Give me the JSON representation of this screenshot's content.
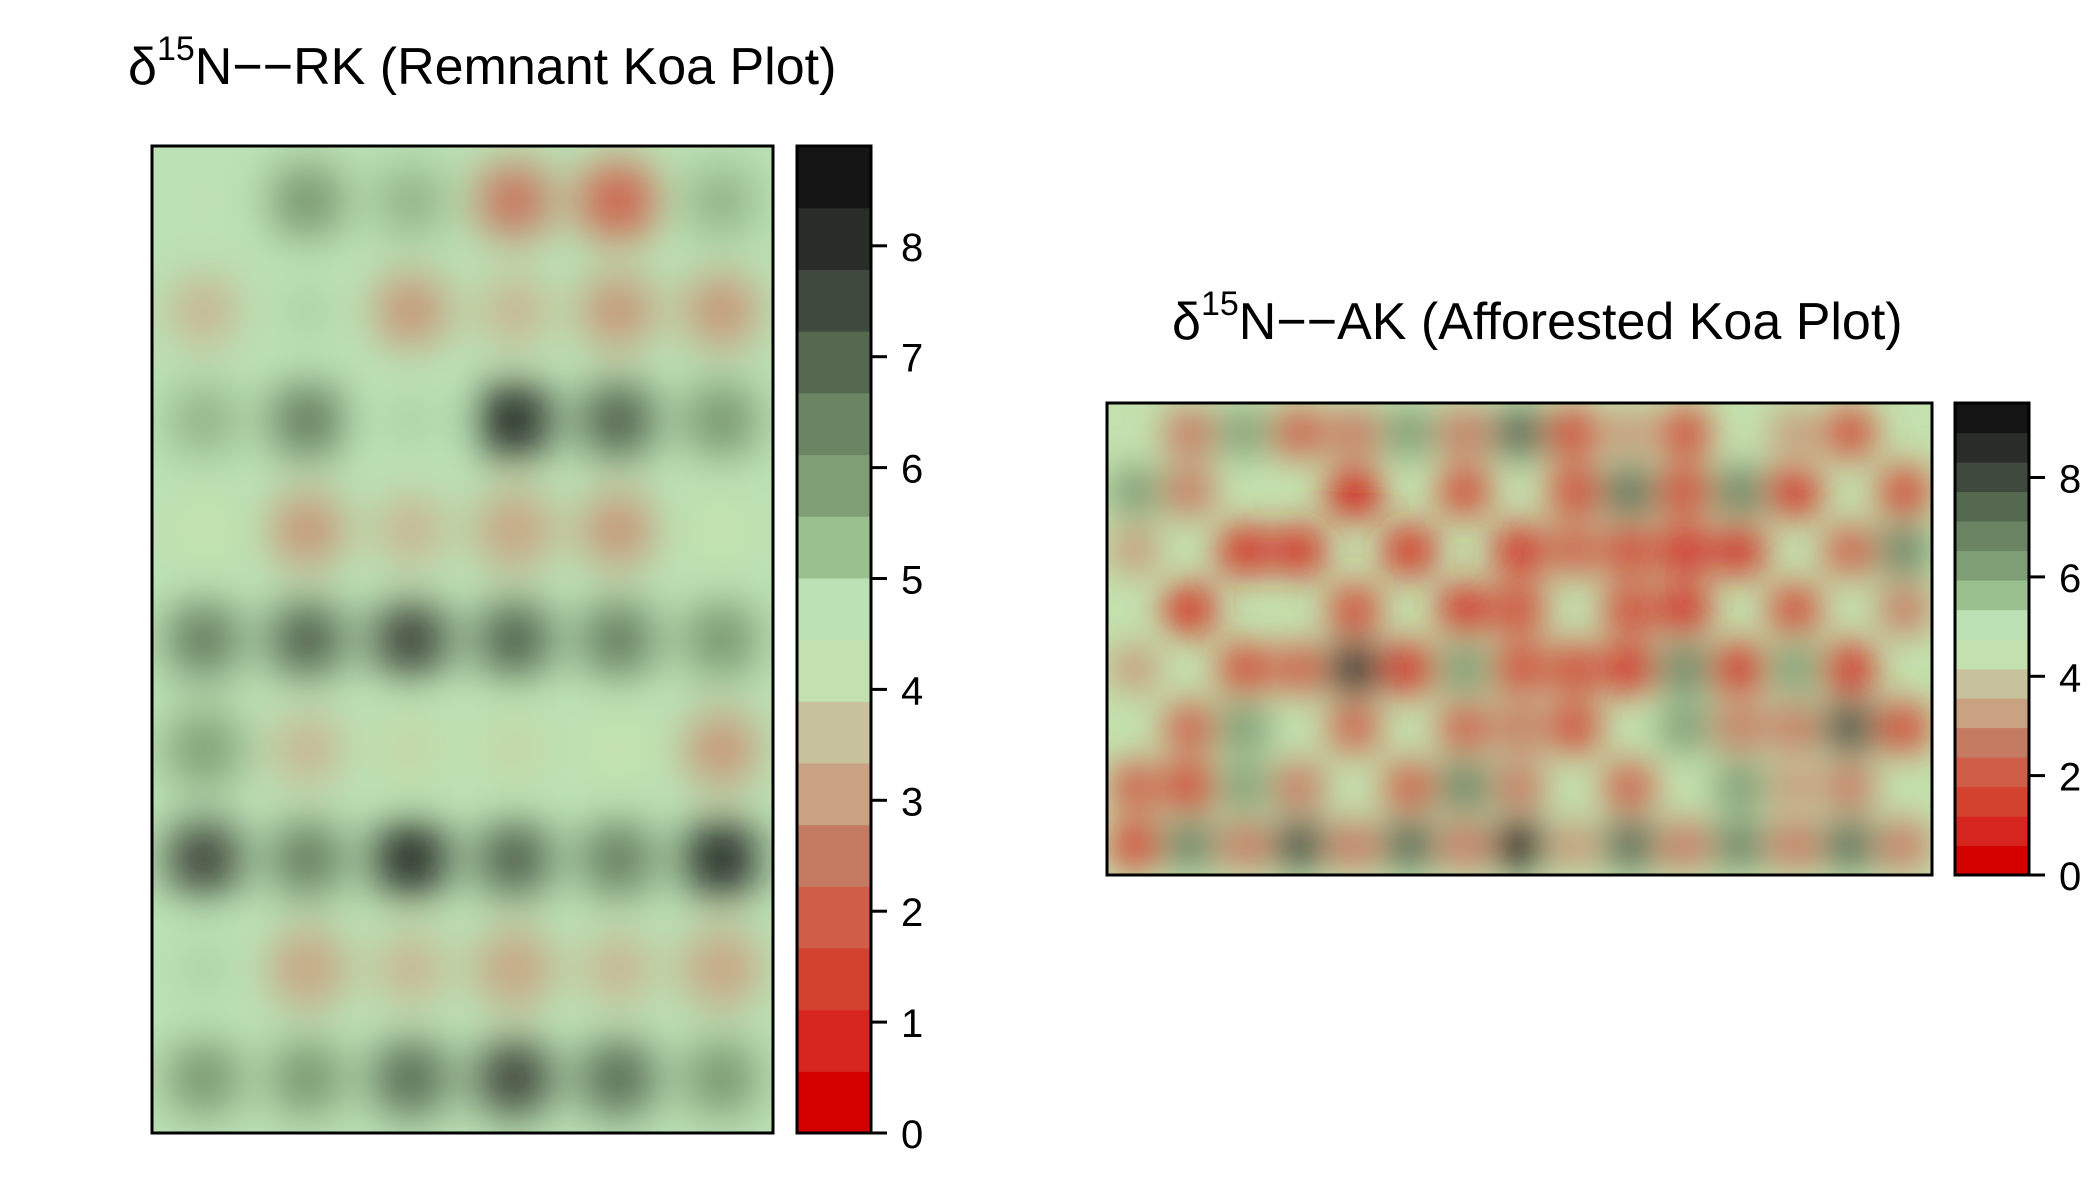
{
  "colors": {
    "ramp": [
      "#d40000",
      "#d5251e",
      "#d3412f",
      "#cf5d47",
      "#c57a62",
      "#c8a281",
      "#c7c29b",
      "#c3e1ae",
      "#bbe1b4",
      "#9bc08f",
      "#7f9e75",
      "#6b8564",
      "#556951",
      "#40493d",
      "#292d27",
      "#151515"
    ],
    "frame": "#000000",
    "background": "#ffffff"
  },
  "chart_data": [
    {
      "type": "heatmap",
      "title_sup": "15",
      "title_symbol": "δ",
      "title_rest": "N−−RK (Remnant Koa Plot)",
      "color_scale": {
        "min": 0,
        "max": 8.9,
        "step": 0.5
      },
      "colorbar_ticks": [
        "0",
        "1",
        "2",
        "3",
        "4",
        "5",
        "6",
        "7",
        "8"
      ],
      "colorbar_tick_values": [
        0,
        1,
        2,
        3,
        4,
        5,
        6,
        7,
        8
      ],
      "grid": {
        "cols": 6,
        "rows": 9,
        "x_range": [
          0,
          5
        ],
        "y_range": [
          0,
          8
        ]
      },
      "background_level": 4.7,
      "points": [
        {
          "x": 0,
          "y": 8,
          "v": 4.7
        },
        {
          "x": 1,
          "y": 8,
          "v": 5.9
        },
        {
          "x": 2,
          "y": 8,
          "v": 5.5
        },
        {
          "x": 3,
          "y": 8,
          "v": 2.4
        },
        {
          "x": 4,
          "y": 8,
          "v": 2.2
        },
        {
          "x": 5,
          "y": 8,
          "v": 5.2
        },
        {
          "x": 0,
          "y": 7,
          "v": 3.8
        },
        {
          "x": 1,
          "y": 7,
          "v": 5.0
        },
        {
          "x": 2,
          "y": 7,
          "v": 3.2
        },
        {
          "x": 3,
          "y": 7,
          "v": 3.6
        },
        {
          "x": 4,
          "y": 7,
          "v": 3.0
        },
        {
          "x": 5,
          "y": 7,
          "v": 2.8
        },
        {
          "x": 0,
          "y": 6,
          "v": 5.5
        },
        {
          "x": 1,
          "y": 6,
          "v": 6.3
        },
        {
          "x": 2,
          "y": 6,
          "v": 5.0
        },
        {
          "x": 3,
          "y": 6,
          "v": 8.0
        },
        {
          "x": 4,
          "y": 6,
          "v": 6.8
        },
        {
          "x": 5,
          "y": 6,
          "v": 5.8
        },
        {
          "x": 0,
          "y": 5,
          "v": 4.4
        },
        {
          "x": 1,
          "y": 5,
          "v": 3.0
        },
        {
          "x": 2,
          "y": 5,
          "v": 3.4
        },
        {
          "x": 3,
          "y": 5,
          "v": 3.3
        },
        {
          "x": 4,
          "y": 5,
          "v": 2.8
        },
        {
          "x": 5,
          "y": 5,
          "v": 4.4
        },
        {
          "x": 0,
          "y": 4,
          "v": 6.4
        },
        {
          "x": 1,
          "y": 4,
          "v": 7.2
        },
        {
          "x": 2,
          "y": 4,
          "v": 7.3
        },
        {
          "x": 3,
          "y": 4,
          "v": 6.9
        },
        {
          "x": 4,
          "y": 4,
          "v": 6.6
        },
        {
          "x": 5,
          "y": 4,
          "v": 5.8
        },
        {
          "x": 0,
          "y": 3,
          "v": 5.6
        },
        {
          "x": 1,
          "y": 3,
          "v": 3.6
        },
        {
          "x": 2,
          "y": 3,
          "v": 4.3
        },
        {
          "x": 3,
          "y": 3,
          "v": 4.2
        },
        {
          "x": 4,
          "y": 3,
          "v": 4.4
        },
        {
          "x": 5,
          "y": 3,
          "v": 3.0
        },
        {
          "x": 0,
          "y": 2,
          "v": 7.4
        },
        {
          "x": 1,
          "y": 2,
          "v": 6.5
        },
        {
          "x": 2,
          "y": 2,
          "v": 8.3
        },
        {
          "x": 3,
          "y": 2,
          "v": 6.8
        },
        {
          "x": 4,
          "y": 2,
          "v": 6.3
        },
        {
          "x": 5,
          "y": 2,
          "v": 8.0
        },
        {
          "x": 0,
          "y": 1,
          "v": 5.0
        },
        {
          "x": 1,
          "y": 1,
          "v": 3.3
        },
        {
          "x": 2,
          "y": 1,
          "v": 3.6
        },
        {
          "x": 3,
          "y": 1,
          "v": 3.3
        },
        {
          "x": 4,
          "y": 1,
          "v": 3.8
        },
        {
          "x": 5,
          "y": 1,
          "v": 3.3
        },
        {
          "x": 0,
          "y": 0,
          "v": 6.1
        },
        {
          "x": 1,
          "y": 0,
          "v": 5.9
        },
        {
          "x": 2,
          "y": 0,
          "v": 6.7
        },
        {
          "x": 3,
          "y": 0,
          "v": 7.5
        },
        {
          "x": 4,
          "y": 0,
          "v": 6.7
        },
        {
          "x": 5,
          "y": 0,
          "v": 6.0
        }
      ]
    },
    {
      "type": "heatmap",
      "title_sup": "15",
      "title_symbol": "δ",
      "title_rest": "N−−AK (Afforested Koa Plot)",
      "color_scale": {
        "min": 0,
        "max": 9.5,
        "step": 0.625
      },
      "colorbar_ticks": [
        "0",
        "2",
        "4",
        "6",
        "8"
      ],
      "colorbar_tick_values": [
        0,
        2,
        4,
        6,
        8
      ],
      "grid": {
        "cols": 15,
        "rows": 8,
        "x_range": [
          0,
          14
        ],
        "y_range": [
          0,
          7
        ]
      },
      "background_level": 4.6,
      "points": [
        {
          "x": 1,
          "y": 7,
          "v": 2.5
        },
        {
          "x": 3,
          "y": 7,
          "v": 2.0
        },
        {
          "x": 4,
          "y": 7,
          "v": 2.5
        },
        {
          "x": 6,
          "y": 7,
          "v": 2.5
        },
        {
          "x": 8,
          "y": 7,
          "v": 1.5
        },
        {
          "x": 9,
          "y": 7,
          "v": 3.0
        },
        {
          "x": 10,
          "y": 7,
          "v": 1.5
        },
        {
          "x": 12,
          "y": 7,
          "v": 3.0
        },
        {
          "x": 13,
          "y": 7,
          "v": 1.2
        },
        {
          "x": 1,
          "y": 6,
          "v": 2.8
        },
        {
          "x": 4,
          "y": 6,
          "v": 0.5
        },
        {
          "x": 6,
          "y": 6,
          "v": 1.5
        },
        {
          "x": 8,
          "y": 6,
          "v": 1.2
        },
        {
          "x": 10,
          "y": 6,
          "v": 1.4
        },
        {
          "x": 12,
          "y": 6,
          "v": 1.0
        },
        {
          "x": 14,
          "y": 6,
          "v": 1.6
        },
        {
          "x": 0,
          "y": 5,
          "v": 3.0
        },
        {
          "x": 2,
          "y": 5,
          "v": 0.6
        },
        {
          "x": 3,
          "y": 5,
          "v": 0.6
        },
        {
          "x": 5,
          "y": 5,
          "v": 1.0
        },
        {
          "x": 7,
          "y": 5,
          "v": 1.0
        },
        {
          "x": 8,
          "y": 5,
          "v": 2.2
        },
        {
          "x": 9,
          "y": 5,
          "v": 1.5
        },
        {
          "x": 10,
          "y": 5,
          "v": 0.8
        },
        {
          "x": 11,
          "y": 5,
          "v": 1.0
        },
        {
          "x": 13,
          "y": 5,
          "v": 1.8
        },
        {
          "x": 1,
          "y": 4,
          "v": 0.8
        },
        {
          "x": 4,
          "y": 4,
          "v": 1.5
        },
        {
          "x": 6,
          "y": 4,
          "v": 0.6
        },
        {
          "x": 7,
          "y": 4,
          "v": 1.2
        },
        {
          "x": 9,
          "y": 4,
          "v": 1.4
        },
        {
          "x": 10,
          "y": 4,
          "v": 1.0
        },
        {
          "x": 12,
          "y": 4,
          "v": 1.4
        },
        {
          "x": 14,
          "y": 4,
          "v": 2.5
        },
        {
          "x": 0,
          "y": 3,
          "v": 3.0
        },
        {
          "x": 2,
          "y": 3,
          "v": 1.2
        },
        {
          "x": 3,
          "y": 3,
          "v": 1.8
        },
        {
          "x": 5,
          "y": 3,
          "v": 0.8
        },
        {
          "x": 7,
          "y": 3,
          "v": 1.6
        },
        {
          "x": 8,
          "y": 3,
          "v": 1.2
        },
        {
          "x": 9,
          "y": 3,
          "v": 1.0
        },
        {
          "x": 11,
          "y": 3,
          "v": 1.0
        },
        {
          "x": 13,
          "y": 3,
          "v": 0.6
        },
        {
          "x": 1,
          "y": 2,
          "v": 2.2
        },
        {
          "x": 4,
          "y": 2,
          "v": 2.0
        },
        {
          "x": 6,
          "y": 2,
          "v": 2.2
        },
        {
          "x": 7,
          "y": 2,
          "v": 2.4
        },
        {
          "x": 8,
          "y": 2,
          "v": 1.5
        },
        {
          "x": 11,
          "y": 2,
          "v": 2.8
        },
        {
          "x": 12,
          "y": 2,
          "v": 2.6
        },
        {
          "x": 14,
          "y": 2,
          "v": 1.2
        },
        {
          "x": 0,
          "y": 1,
          "v": 2.0
        },
        {
          "x": 1,
          "y": 1,
          "v": 1.6
        },
        {
          "x": 3,
          "y": 1,
          "v": 2.4
        },
        {
          "x": 5,
          "y": 1,
          "v": 1.8
        },
        {
          "x": 7,
          "y": 1,
          "v": 2.5
        },
        {
          "x": 9,
          "y": 1,
          "v": 2.2
        },
        {
          "x": 12,
          "y": 1,
          "v": 3.0
        },
        {
          "x": 13,
          "y": 1,
          "v": 2.8
        },
        {
          "x": 0,
          "y": 0,
          "v": 1.6
        },
        {
          "x": 2,
          "y": 0,
          "v": 2.8
        },
        {
          "x": 4,
          "y": 0,
          "v": 2.6
        },
        {
          "x": 6,
          "y": 0,
          "v": 2.8
        },
        {
          "x": 8,
          "y": 0,
          "v": 3.0
        },
        {
          "x": 10,
          "y": 0,
          "v": 2.6
        },
        {
          "x": 12,
          "y": 0,
          "v": 2.8
        },
        {
          "x": 14,
          "y": 0,
          "v": 2.5
        },
        {
          "x": 0,
          "y": 6,
          "v": 6.5
        },
        {
          "x": 2,
          "y": 7,
          "v": 6.0
        },
        {
          "x": 5,
          "y": 7,
          "v": 6.2
        },
        {
          "x": 7,
          "y": 7,
          "v": 7.5
        },
        {
          "x": 9,
          "y": 6,
          "v": 7.2
        },
        {
          "x": 11,
          "y": 6,
          "v": 6.8
        },
        {
          "x": 14,
          "y": 5,
          "v": 7.0
        },
        {
          "x": 4,
          "y": 3,
          "v": 8.6
        },
        {
          "x": 6,
          "y": 3,
          "v": 6.2
        },
        {
          "x": 10,
          "y": 3,
          "v": 6.8
        },
        {
          "x": 12,
          "y": 3,
          "v": 6.0
        },
        {
          "x": 2,
          "y": 2,
          "v": 6.2
        },
        {
          "x": 10,
          "y": 2,
          "v": 6.5
        },
        {
          "x": 13,
          "y": 2,
          "v": 7.8
        },
        {
          "x": 2,
          "y": 1,
          "v": 6.0
        },
        {
          "x": 6,
          "y": 1,
          "v": 7.0
        },
        {
          "x": 11,
          "y": 1,
          "v": 6.4
        },
        {
          "x": 1,
          "y": 0,
          "v": 6.8
        },
        {
          "x": 3,
          "y": 0,
          "v": 7.8
        },
        {
          "x": 5,
          "y": 0,
          "v": 7.4
        },
        {
          "x": 7,
          "y": 0,
          "v": 9.2
        },
        {
          "x": 9,
          "y": 0,
          "v": 7.4
        },
        {
          "x": 11,
          "y": 0,
          "v": 6.8
        },
        {
          "x": 13,
          "y": 0,
          "v": 7.2
        }
      ]
    }
  ]
}
